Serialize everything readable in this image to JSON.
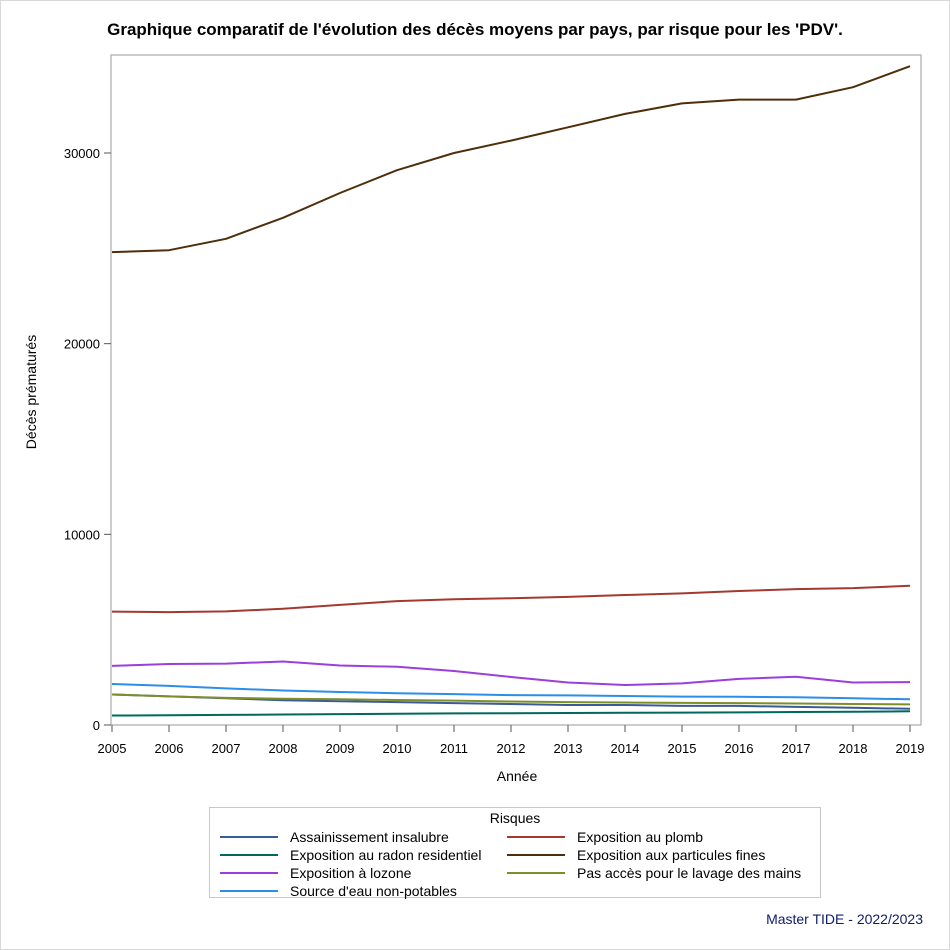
{
  "title": "Graphique comparatif de l'évolution des décès moyens par pays, par risque pour les 'PDV'.",
  "footer": "Master TIDE - 2022/2023",
  "chart_data": {
    "type": "line",
    "title": "Graphique comparatif de l'évolution des décès moyens par pays, par risque pour les 'PDV'.",
    "xlabel": "Année",
    "ylabel": "Décès prématurés",
    "x": [
      2005,
      2006,
      2007,
      2008,
      2009,
      2010,
      2011,
      2012,
      2013,
      2014,
      2015,
      2016,
      2017,
      2018,
      2019
    ],
    "xlim": [
      2005,
      2019
    ],
    "ylim": [
      0,
      35000
    ],
    "yticks": [
      0,
      10000,
      20000,
      30000
    ],
    "grid": false,
    "legend_title": "Risques",
    "legend_position": "bottom",
    "series": [
      {
        "name": "Assainissement insalubre",
        "color": "#3b5a9a",
        "values": [
          1600,
          1500,
          1400,
          1300,
          1250,
          1200,
          1150,
          1100,
          1050,
          1050,
          1000,
          1000,
          950,
          900,
          850
        ]
      },
      {
        "name": "Exposition au plomb",
        "color": "#a23a32",
        "values": [
          5950,
          5920,
          5960,
          6100,
          6300,
          6500,
          6600,
          6650,
          6720,
          6820,
          6900,
          7030,
          7130,
          7180,
          7300
        ]
      },
      {
        "name": "Exposition au radon residentiel",
        "color": "#00695c",
        "values": [
          500,
          510,
          530,
          550,
          570,
          590,
          610,
          620,
          630,
          640,
          650,
          660,
          680,
          700,
          720
        ]
      },
      {
        "name": "Exposition aux particules fines",
        "color": "#4f2e0a",
        "values": [
          24800,
          24900,
          25500,
          26600,
          27900,
          29100,
          30000,
          30650,
          31350,
          32050,
          32600,
          32800,
          32800,
          33450,
          34550
        ]
      },
      {
        "name": "Exposition à lozone",
        "color": "#9b3fdc",
        "values": [
          3100,
          3200,
          3220,
          3330,
          3120,
          3050,
          2830,
          2520,
          2230,
          2100,
          2180,
          2420,
          2530,
          2230,
          2250
        ]
      },
      {
        "name": "Pas accès pour le lavage des mains",
        "color": "#7e8f2a",
        "values": [
          1600,
          1500,
          1420,
          1380,
          1350,
          1310,
          1280,
          1230,
          1200,
          1180,
          1160,
          1150,
          1130,
          1100,
          1080
        ]
      },
      {
        "name": "Source d'eau non-potables",
        "color": "#2b8ee8",
        "values": [
          2150,
          2050,
          1920,
          1810,
          1730,
          1670,
          1620,
          1570,
          1550,
          1520,
          1490,
          1480,
          1460,
          1400,
          1350
        ]
      }
    ]
  }
}
